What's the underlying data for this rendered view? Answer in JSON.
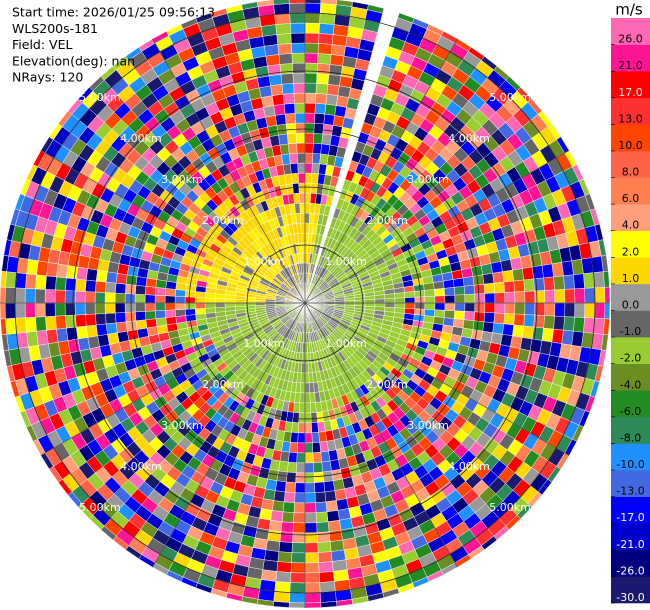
{
  "chart_data": {
    "type": "ppi",
    "info": [
      "Start time: 2026/01/25 09:56:13",
      "WLS200s-181",
      "Field: VEL",
      "Elevation(deg): nan",
      "NRays: 120"
    ],
    "rings": [
      {
        "value": 1,
        "label": "1.00km"
      },
      {
        "value": 2,
        "label": "2.00km"
      },
      {
        "value": 3,
        "label": "3.00km"
      },
      {
        "value": 4,
        "label": "4.00km"
      },
      {
        "value": 5,
        "label": "5.00km"
      }
    ],
    "colorbar": {
      "label": "m/s",
      "clim": [
        -30,
        30
      ],
      "ticks": [
        {
          "value": -30,
          "label": "-30.0"
        },
        {
          "value": -26,
          "label": "-26.0"
        },
        {
          "value": -21,
          "label": "-21.0"
        },
        {
          "value": -17,
          "label": "-17.0"
        },
        {
          "value": -13,
          "label": "-13.0"
        },
        {
          "value": -10,
          "label": "-10.0"
        },
        {
          "value": -8,
          "label": "-8.0"
        },
        {
          "value": -6,
          "label": "-6.0"
        },
        {
          "value": -4,
          "label": "-4.0"
        },
        {
          "value": -2,
          "label": "-2.0"
        },
        {
          "value": -1,
          "label": "-1.0"
        },
        {
          "value": 0,
          "label": "0.0"
        },
        {
          "value": 1,
          "label": "1.0"
        },
        {
          "value": 2,
          "label": "2.0"
        },
        {
          "value": 4,
          "label": "4.0"
        },
        {
          "value": 6,
          "label": "6.0"
        },
        {
          "value": 8,
          "label": "8.0"
        },
        {
          "value": 10,
          "label": "10.0"
        },
        {
          "value": 13,
          "label": "13.0"
        },
        {
          "value": 17,
          "label": "17.0"
        },
        {
          "value": 21,
          "label": "21.0"
        },
        {
          "value": 26,
          "label": "26.0"
        }
      ],
      "colors": [
        "#191970",
        "#000080",
        "#0000cd",
        "#0000ff",
        "#4169e1",
        "#1e90ff",
        "#2e8b57",
        "#228b22",
        "#6b8e23",
        "#9acd32",
        "#666666",
        "#999999",
        "#ffd700",
        "#ffff00",
        "#ffa07a",
        "#ff7f50",
        "#ff6347",
        "#ff4500",
        "#ff3030",
        "#ff0000",
        "#ff1493",
        "#ff69b4"
      ]
    }
  }
}
